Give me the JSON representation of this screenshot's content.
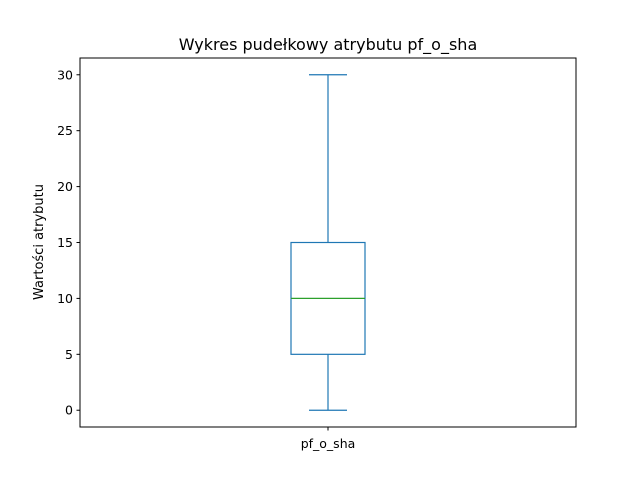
{
  "chart_data": {
    "type": "box",
    "title": "Wykres pudełkowy atrybutu pf_o_sha",
    "xlabel": "",
    "ylabel": "Wartości atrybutu",
    "ylim": [
      -1.5,
      31.5
    ],
    "yticks": [
      0,
      5,
      10,
      15,
      20,
      25,
      30
    ],
    "grid": false,
    "categories": [
      "pf_o_sha"
    ],
    "series": [
      {
        "min": 0,
        "q1": 5,
        "median": 10,
        "q3": 15,
        "max": 30
      }
    ],
    "colors": {
      "box": "#1f77b4",
      "median": "#2ca02c"
    }
  }
}
